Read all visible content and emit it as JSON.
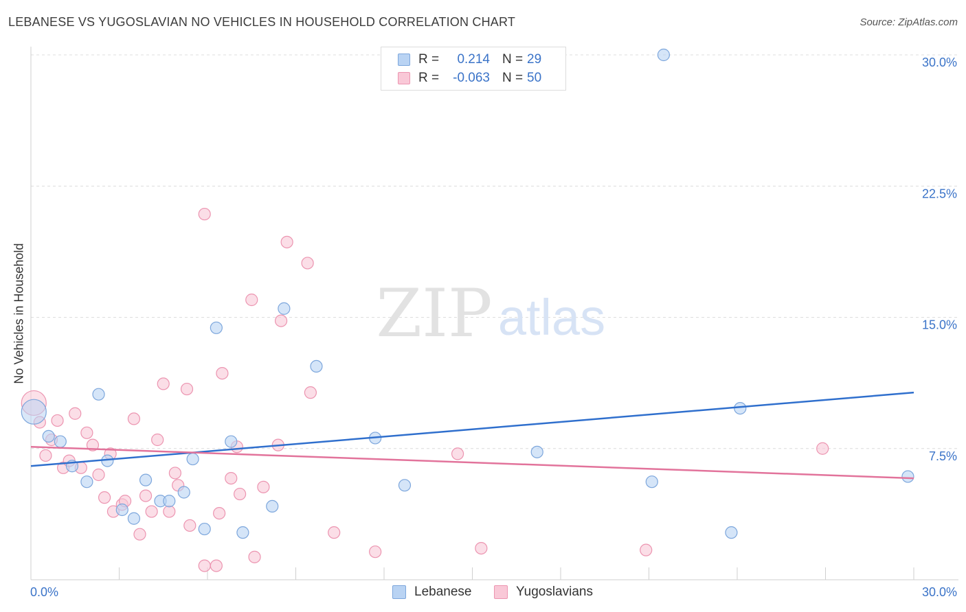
{
  "header": {
    "title": "LEBANESE VS YUGOSLAVIAN NO VEHICLES IN HOUSEHOLD CORRELATION CHART",
    "source": "Source: ZipAtlas.com"
  },
  "watermark": {
    "zip": "ZIP",
    "atlas": "atlas"
  },
  "legend_top": {
    "rows": [
      {
        "r_label": "R =",
        "r_value": "0.214",
        "n_label": "N =",
        "n_value": "29"
      },
      {
        "r_label": "R =",
        "r_value": "-0.063",
        "n_label": "N =",
        "n_value": "50"
      }
    ]
  },
  "legend_bottom": {
    "items": [
      "Lebanese",
      "Yugoslavians"
    ]
  },
  "colors": {
    "blue_fill": "#b9d3f3",
    "blue_stroke": "#7ca6dc",
    "blue_line": "#2f6fcd",
    "pink_fill": "#f9c8d7",
    "pink_stroke": "#ec94b0",
    "pink_line": "#e2739b",
    "tick_label": "#3a73c8",
    "grid": "#dcdcdc"
  },
  "chart_data": {
    "type": "scatter",
    "title": "LEBANESE VS YUGOSLAVIAN NO VEHICLES IN HOUSEHOLD CORRELATION CHART",
    "xlabel": "",
    "ylabel": "No Vehicles in Household",
    "xlim": [
      0,
      30
    ],
    "ylim": [
      0,
      30
    ],
    "x_tick_labels": [
      "0.0%",
      "30.0%"
    ],
    "y_ticks": [
      7.5,
      15.0,
      22.5,
      30.0
    ],
    "y_tick_labels": [
      "7.5%",
      "15.0%",
      "22.5%",
      "30.0%"
    ],
    "grid": true,
    "legend_placement": "bottom",
    "series": [
      {
        "name": "Lebanese",
        "r": 0.214,
        "n": 29,
        "trend": {
          "x": [
            0,
            30
          ],
          "y": [
            6.5,
            10.7
          ]
        },
        "points": [
          {
            "x": 0.1,
            "y": 9.6,
            "big": true
          },
          {
            "x": 0.6,
            "y": 8.2
          },
          {
            "x": 1.0,
            "y": 7.9
          },
          {
            "x": 1.4,
            "y": 6.5
          },
          {
            "x": 1.9,
            "y": 5.6
          },
          {
            "x": 2.3,
            "y": 10.6
          },
          {
            "x": 2.6,
            "y": 6.8
          },
          {
            "x": 3.1,
            "y": 4.0
          },
          {
            "x": 3.5,
            "y": 3.5
          },
          {
            "x": 3.9,
            "y": 5.7
          },
          {
            "x": 4.4,
            "y": 4.5
          },
          {
            "x": 4.7,
            "y": 4.5
          },
          {
            "x": 5.2,
            "y": 5.0
          },
          {
            "x": 5.5,
            "y": 6.9
          },
          {
            "x": 5.9,
            "y": 2.9
          },
          {
            "x": 6.3,
            "y": 14.4
          },
          {
            "x": 6.8,
            "y": 7.9
          },
          {
            "x": 7.2,
            "y": 2.7
          },
          {
            "x": 8.2,
            "y": 4.2
          },
          {
            "x": 8.6,
            "y": 15.5
          },
          {
            "x": 9.7,
            "y": 12.2
          },
          {
            "x": 11.7,
            "y": 8.1
          },
          {
            "x": 12.7,
            "y": 5.4
          },
          {
            "x": 17.2,
            "y": 7.3
          },
          {
            "x": 21.1,
            "y": 5.6
          },
          {
            "x": 21.5,
            "y": 30.0
          },
          {
            "x": 23.8,
            "y": 2.7
          },
          {
            "x": 24.1,
            "y": 9.8
          },
          {
            "x": 29.8,
            "y": 5.9
          }
        ]
      },
      {
        "name": "Yugoslavians",
        "r": -0.063,
        "n": 50,
        "trend": {
          "x": [
            0,
            30
          ],
          "y": [
            7.6,
            5.8
          ]
        },
        "points": [
          {
            "x": 0.1,
            "y": 10.1,
            "big": true
          },
          {
            "x": 0.3,
            "y": 9.0
          },
          {
            "x": 0.5,
            "y": 7.1
          },
          {
            "x": 0.7,
            "y": 8.0
          },
          {
            "x": 0.9,
            "y": 9.1
          },
          {
            "x": 1.1,
            "y": 6.4
          },
          {
            "x": 1.3,
            "y": 6.8
          },
          {
            "x": 1.5,
            "y": 9.5
          },
          {
            "x": 1.7,
            "y": 6.4
          },
          {
            "x": 1.9,
            "y": 8.4
          },
          {
            "x": 2.1,
            "y": 7.7
          },
          {
            "x": 2.3,
            "y": 6.0
          },
          {
            "x": 2.5,
            "y": 4.7
          },
          {
            "x": 2.7,
            "y": 7.2
          },
          {
            "x": 2.8,
            "y": 3.9
          },
          {
            "x": 3.1,
            "y": 4.3
          },
          {
            "x": 3.2,
            "y": 4.5
          },
          {
            "x": 3.5,
            "y": 9.2
          },
          {
            "x": 3.7,
            "y": 2.6
          },
          {
            "x": 3.9,
            "y": 4.8
          },
          {
            "x": 4.1,
            "y": 3.9
          },
          {
            "x": 4.3,
            "y": 8.0
          },
          {
            "x": 4.5,
            "y": 11.2
          },
          {
            "x": 4.7,
            "y": 3.9
          },
          {
            "x": 4.9,
            "y": 6.1
          },
          {
            "x": 5.0,
            "y": 5.4
          },
          {
            "x": 5.3,
            "y": 10.9
          },
          {
            "x": 5.4,
            "y": 3.1
          },
          {
            "x": 5.9,
            "y": 20.9
          },
          {
            "x": 5.9,
            "y": 0.8
          },
          {
            "x": 6.3,
            "y": 0.8
          },
          {
            "x": 6.4,
            "y": 3.8
          },
          {
            "x": 6.5,
            "y": 11.8
          },
          {
            "x": 6.8,
            "y": 5.8
          },
          {
            "x": 7.0,
            "y": 7.6
          },
          {
            "x": 7.1,
            "y": 4.9
          },
          {
            "x": 7.5,
            "y": 16.0
          },
          {
            "x": 7.6,
            "y": 1.3
          },
          {
            "x": 7.9,
            "y": 5.3
          },
          {
            "x": 8.4,
            "y": 7.7
          },
          {
            "x": 8.5,
            "y": 14.8
          },
          {
            "x": 8.7,
            "y": 19.3
          },
          {
            "x": 9.4,
            "y": 18.1
          },
          {
            "x": 9.5,
            "y": 10.7
          },
          {
            "x": 10.3,
            "y": 2.7
          },
          {
            "x": 11.7,
            "y": 1.6
          },
          {
            "x": 14.5,
            "y": 7.2
          },
          {
            "x": 15.3,
            "y": 1.8
          },
          {
            "x": 20.9,
            "y": 1.7
          },
          {
            "x": 26.9,
            "y": 7.5
          }
        ]
      }
    ]
  }
}
